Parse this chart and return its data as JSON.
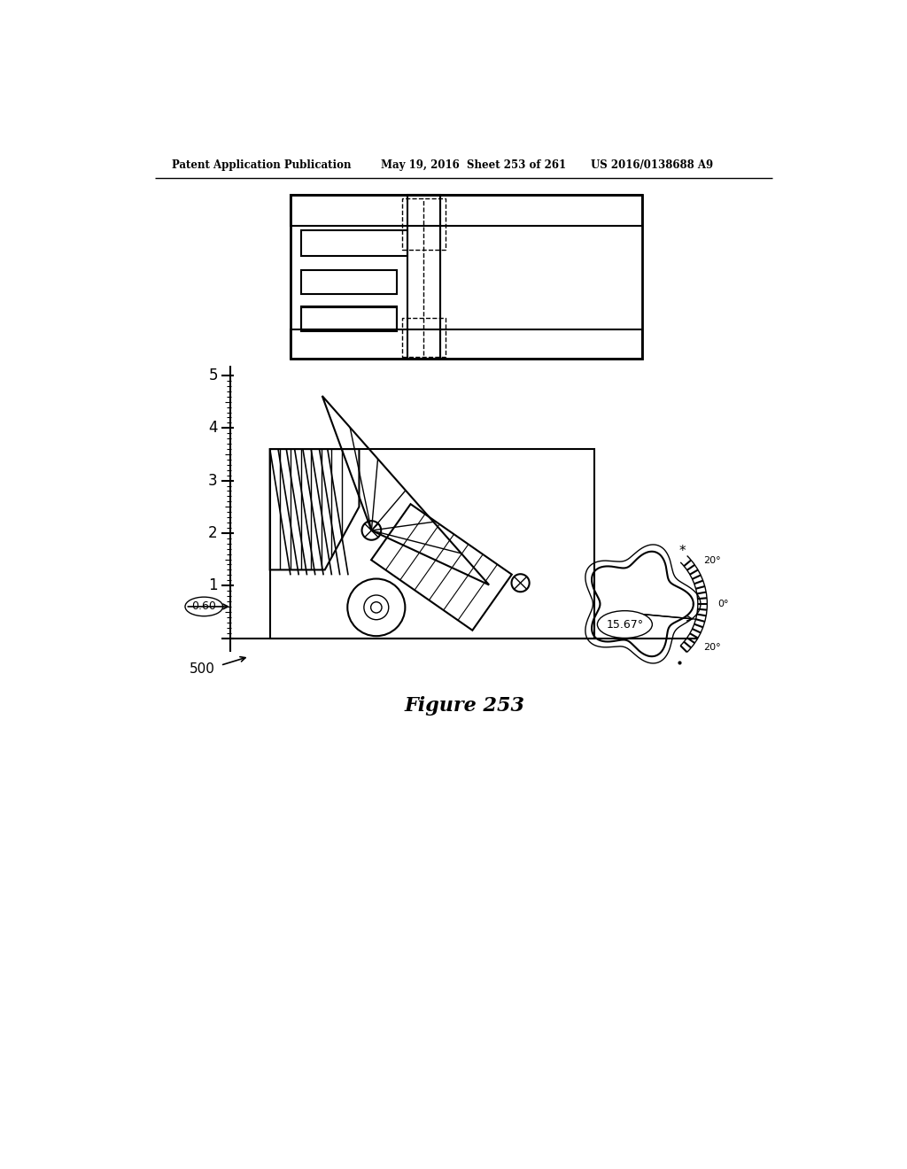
{
  "header_left": "Patent Application Publication",
  "header_mid": "May 19, 2016  Sheet 253 of 261",
  "header_right": "US 2016/0138688 A9",
  "figure_label": "Figure 253",
  "label_500": "500",
  "background_color": "#ffffff",
  "line_color": "#000000"
}
